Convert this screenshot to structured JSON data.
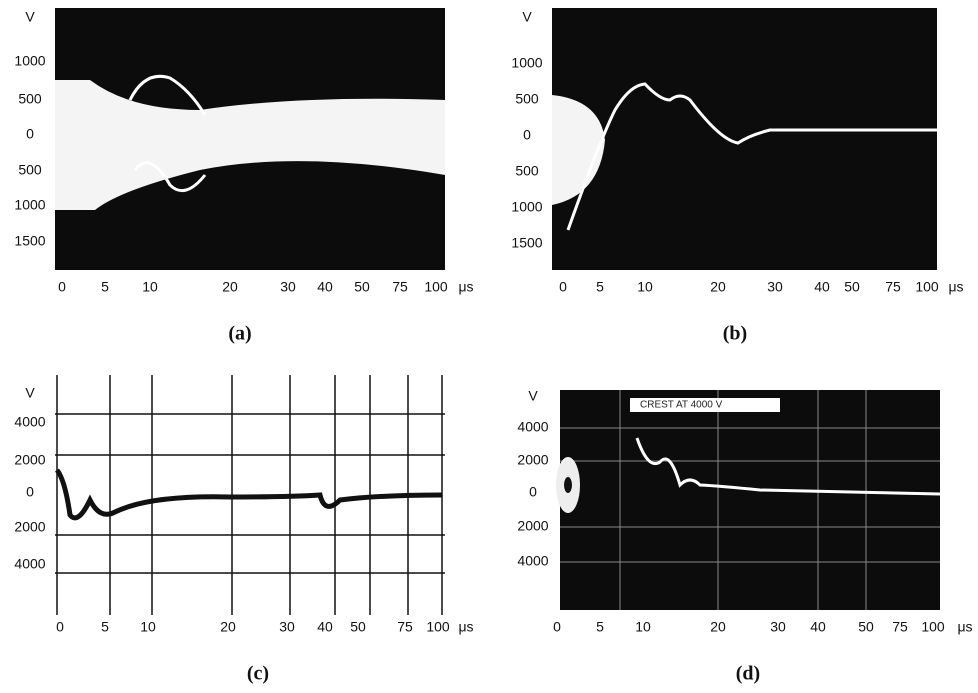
{
  "panels": [
    {
      "y_labels": [
        "V",
        "1000",
        "500",
        "0",
        "500",
        "1000",
        "1500"
      ],
      "x_labels": [
        "0",
        "5",
        "10",
        "20",
        "30",
        "40",
        "50",
        "75",
        "100"
      ],
      "unit": "μs",
      "caption": "(a)"
    },
    {
      "y_labels": [
        "V",
        "1000",
        "500",
        "0",
        "500",
        "1000",
        "1500"
      ],
      "x_labels": [
        "0",
        "5",
        "10",
        "20",
        "30",
        "40",
        "50",
        "75",
        "100"
      ],
      "unit": "μs",
      "caption": "(b)"
    },
    {
      "y_labels": [
        "V",
        "4000",
        "2000",
        "0",
        "2000",
        "4000"
      ],
      "x_labels": [
        "0",
        "5",
        "10",
        "20",
        "30",
        "40",
        "50",
        "75",
        "100"
      ],
      "unit": "μs",
      "caption": "(c)"
    },
    {
      "y_labels": [
        "V",
        "4000",
        "2000",
        "0",
        "2000",
        "4000"
      ],
      "x_labels": [
        "0",
        "5",
        "10",
        "20",
        "30",
        "40",
        "50",
        "75",
        "100"
      ],
      "unit": "μs",
      "caption": "(d)",
      "annotation": "CREST AT 4000 V"
    }
  ]
}
